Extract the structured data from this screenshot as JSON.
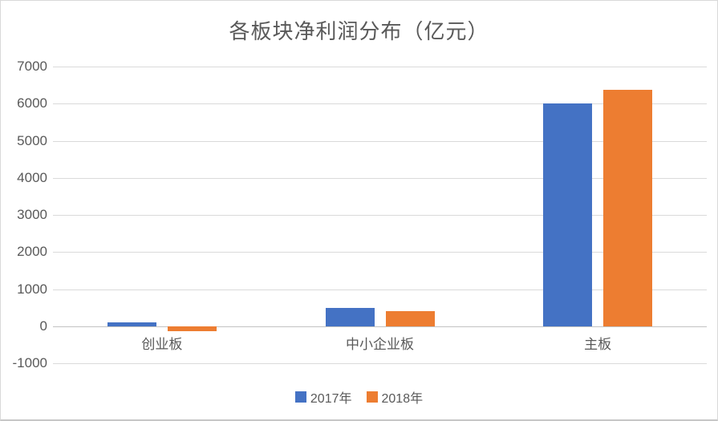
{
  "chart_data": {
    "type": "bar",
    "title": "各板块净利润分布（亿元）",
    "categories": [
      "创业板",
      "中小企业板",
      "主板"
    ],
    "series": [
      {
        "name": "2017年",
        "color": "#4472C4",
        "values": [
          100,
          500,
          6010
        ]
      },
      {
        "name": "2018年",
        "color": "#ED7D31",
        "values": [
          -140,
          400,
          6380
        ]
      }
    ],
    "xlabel": "",
    "ylabel": "",
    "ylim": [
      -1000,
      7000
    ],
    "y_ticks": [
      7000,
      6000,
      5000,
      4000,
      3000,
      2000,
      1000,
      0,
      -1000
    ],
    "grid": true,
    "legend_position": "bottom"
  },
  "colors": {
    "text": "#595959",
    "gridline": "#DADADA",
    "zero_line": "#C3C3C3",
    "background": "#FFFFFF",
    "frame_border": "#D9D9D9"
  }
}
